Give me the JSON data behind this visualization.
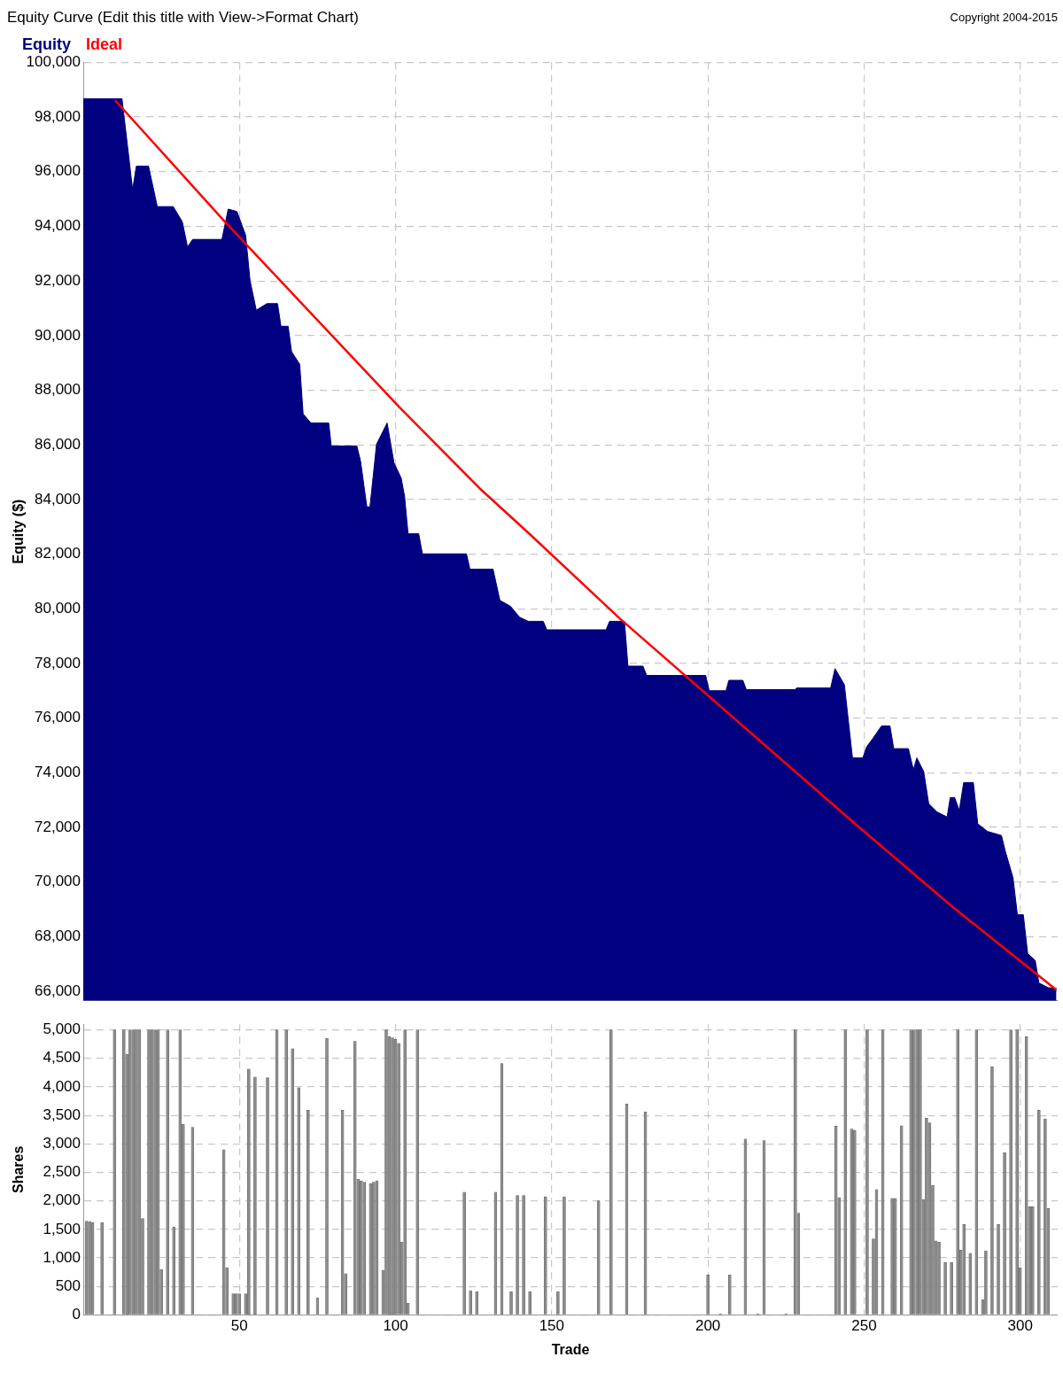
{
  "chart_data": [
    {
      "type": "area",
      "title": "Equity Curve (Edit this title with View->Format Chart)",
      "ylabel": "Equity ($)",
      "annotations": [
        "Copyright 2004-2015"
      ],
      "legend": "top left",
      "grid": true,
      "tick_labels": "y",
      "xlim": [
        0,
        312
      ],
      "xticks": [
        50,
        100,
        150,
        200,
        250,
        300
      ],
      "ylim": [
        65650,
        100000
      ],
      "yticks": [
        {
          "value": 66000,
          "label": "66,000"
        },
        {
          "value": 68000,
          "label": "68,000"
        },
        {
          "value": 70000,
          "label": "70,000"
        },
        {
          "value": 72000,
          "label": "72,000"
        },
        {
          "value": 74000,
          "label": "74,000"
        },
        {
          "value": 76000,
          "label": "76,000"
        },
        {
          "value": 78000,
          "label": "78,000"
        },
        {
          "value": 80000,
          "label": "80,000"
        },
        {
          "value": 82000,
          "label": "82,000"
        },
        {
          "value": 84000,
          "label": "84,000"
        },
        {
          "value": 86000,
          "label": "86,000"
        },
        {
          "value": 88000,
          "label": "88,000"
        },
        {
          "value": 90000,
          "label": "90,000"
        },
        {
          "value": 92000,
          "label": "92,000"
        },
        {
          "value": 94000,
          "label": "94,000"
        },
        {
          "value": 96000,
          "label": "96,000"
        },
        {
          "value": 98000,
          "label": "98,000"
        },
        {
          "value": 100000,
          "label": "100,000"
        }
      ],
      "series": [
        {
          "name": "Equity",
          "type": "area",
          "color": "#000080",
          "x": [
            0,
            12.4,
            15.8,
            17,
            20.9,
            23.7,
            28.8,
            31.7,
            33.4,
            35,
            44.4,
            46.4,
            49.2,
            52,
            53.4,
            55.4,
            58.8,
            62.2,
            63.3,
            65.6,
            66.7,
            69.3,
            70.4,
            72.9,
            78.6,
            79.4,
            87.6,
            88.8,
            90.8,
            91.8,
            93.9,
            97.3,
            99.5,
            101.8,
            102.9,
            104,
            107.4,
            108.6,
            122.7,
            123.8,
            131.2,
            133.4,
            136.8,
            139.7,
            142.5,
            147.3,
            148.4,
            167.4,
            168.5,
            173.3,
            174.4,
            179.2,
            180.4,
            199.3,
            200.4,
            205.8,
            206.7,
            211.2,
            212.3,
            227.9,
            228.4,
            239.3,
            240.7,
            243.7,
            246.3,
            249.6,
            250.8,
            252.8,
            255.6,
            258.3,
            259.5,
            264.2,
            265.8,
            266.9,
            269.1,
            270.7,
            273.4,
            276.6,
            277.6,
            279,
            280.5,
            281.9,
            285,
            286.4,
            289.5,
            294,
            295.2,
            297.7,
            299.1,
            301,
            302.4,
            304.8,
            306,
            309,
            311.6
          ],
          "values": [
            98670,
            98670,
            95340,
            96200,
            96200,
            94720,
            94720,
            94170,
            93240,
            93520,
            93520,
            94630,
            94540,
            93670,
            92010,
            90930,
            91170,
            91170,
            90340,
            90340,
            89410,
            88950,
            87130,
            86800,
            86800,
            85960,
            85960,
            85400,
            83730,
            83730,
            86020,
            86800,
            85340,
            84780,
            84100,
            82750,
            82750,
            82010,
            82010,
            81450,
            81450,
            80310,
            80090,
            79690,
            79540,
            79540,
            79230,
            79230,
            79540,
            79540,
            77900,
            77900,
            77560,
            77560,
            77000,
            77000,
            77380,
            77380,
            77040,
            77040,
            77100,
            77100,
            77810,
            77220,
            74540,
            74540,
            74940,
            75250,
            75710,
            75710,
            74880,
            74880,
            74110,
            74540,
            74040,
            72870,
            72560,
            72380,
            73090,
            73090,
            72620,
            73640,
            73640,
            72130,
            71850,
            71700,
            71140,
            70150,
            68800,
            68800,
            67380,
            67130,
            66300,
            66130,
            66100
          ]
        },
        {
          "name": "Ideal",
          "type": "line",
          "color": "#ff0000",
          "x": [
            10.2,
            45.8,
            101.2,
            126.9,
            142.5,
            171.9,
            246.8,
            278.5,
            311.6
          ],
          "values": [
            98610,
            94110,
            87380,
            84410,
            82780,
            79630,
            72160,
            69070,
            66050
          ]
        }
      ]
    },
    {
      "type": "bar",
      "xlabel": "Trade",
      "ylabel": "Shares",
      "grid": true,
      "color": "#8c8c8c",
      "xlim": [
        0,
        312
      ],
      "xticks": [
        50,
        100,
        150,
        200,
        250,
        300
      ],
      "ylim": [
        0,
        5100
      ],
      "yticks": [
        0,
        500,
        {
          "value": 1000,
          "label": "1,000"
        },
        {
          "value": 1500,
          "label": "1,500"
        },
        {
          "value": 2000,
          "label": "2,000"
        },
        {
          "value": 2500,
          "label": "2,500"
        },
        {
          "value": 3000,
          "label": "3,000"
        },
        {
          "value": 3500,
          "label": "3,500"
        },
        {
          "value": 4000,
          "label": "4,000"
        },
        {
          "value": 4500,
          "label": "4,500"
        },
        {
          "value": 5000,
          "label": "5,000"
        }
      ],
      "x": [
        1,
        2,
        3,
        6,
        10,
        13,
        14,
        15,
        16,
        17,
        18,
        19,
        21,
        22,
        23,
        24,
        25,
        27,
        29,
        31,
        32,
        35,
        45,
        46,
        48,
        49,
        50,
        52,
        53,
        55,
        59,
        62,
        65,
        67,
        69,
        72,
        75,
        78,
        83,
        84,
        87,
        88,
        89,
        90,
        92,
        93,
        94,
        96,
        97,
        98,
        99,
        100,
        101,
        102,
        103,
        104,
        107,
        122,
        124,
        126,
        132,
        134,
        137,
        139,
        141,
        143,
        148,
        152,
        154,
        165,
        169,
        174,
        180,
        200,
        204,
        207,
        212,
        216,
        218,
        225,
        228,
        229,
        241,
        242,
        244,
        246,
        247,
        251,
        253,
        254,
        256,
        259,
        260,
        262,
        265,
        266,
        267,
        268,
        269,
        270,
        271,
        272,
        273,
        274,
        276,
        278,
        280,
        281,
        282,
        284,
        286,
        288,
        289,
        291,
        293,
        295,
        297,
        299,
        300,
        302,
        303,
        304,
        306,
        308,
        309
      ],
      "values": [
        1645,
        1640,
        1620,
        1620,
        5000,
        5000,
        4575,
        5000,
        5000,
        5000,
        5000,
        1690,
        5000,
        5000,
        5000,
        5000,
        795,
        5000,
        1540,
        5000,
        3345,
        3290,
        2900,
        830,
        370,
        370,
        370,
        370,
        4315,
        4175,
        4160,
        5000,
        5000,
        4670,
        3985,
        3590,
        300,
        4850,
        3590,
        725,
        4800,
        2380,
        2350,
        2330,
        2305,
        2330,
        2350,
        785,
        5000,
        4880,
        4860,
        4835,
        4765,
        1275,
        5000,
        205,
        5000,
        2155,
        425,
        405,
        2155,
        4410,
        405,
        2095,
        2095,
        405,
        2070,
        405,
        2070,
        2000,
        5000,
        3700,
        3560,
        700,
        20,
        700,
        3085,
        20,
        3060,
        20,
        5000,
        1785,
        3310,
        2055,
        5000,
        3260,
        3240,
        5000,
        1335,
        2200,
        5000,
        2045,
        2045,
        3320,
        5000,
        5000,
        5000,
        5000,
        2025,
        3450,
        3370,
        2270,
        1300,
        1275,
        920,
        920,
        5000,
        1135,
        1585,
        1080,
        5000,
        265,
        1125,
        4355,
        1585,
        2850,
        5000,
        5000,
        830,
        4880,
        1895,
        1895,
        3590,
        3440,
        1865
      ]
    }
  ]
}
